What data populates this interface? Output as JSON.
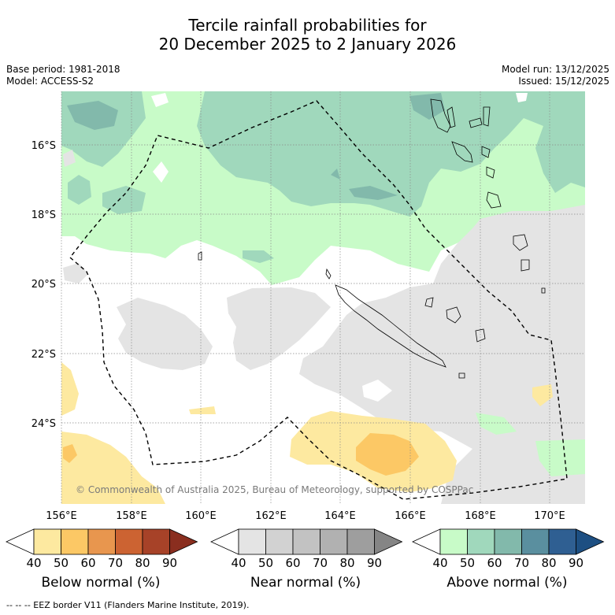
{
  "title": {
    "line1": "Tercile rainfall probabilities for",
    "line2": "20 December 2025 to 2 January 2026"
  },
  "info_left": {
    "base_period": "Base period: 1981-2018",
    "model": "Model: ACCESS-S2"
  },
  "info_right": {
    "model_run": "Model run: 13/12/2025",
    "issued": "Issued: 15/12/2025"
  },
  "map": {
    "lat_labels": [
      "16°S",
      "18°S",
      "20°S",
      "22°S",
      "24°S"
    ],
    "lon_labels": [
      "156°E",
      "158°E",
      "160°E",
      "162°E",
      "164°E",
      "166°E",
      "168°E",
      "170°E"
    ],
    "copyright": "© Commonwealth of Australia 2025, Bureau of Meteorology, supported by COSPPac"
  },
  "colorbars": [
    {
      "label": "Below normal (%)",
      "ticks": [
        "40",
        "50",
        "60",
        "70",
        "80",
        "90"
      ],
      "colors": [
        "#ffffff",
        "#fde9a0",
        "#fcc865",
        "#e8964e",
        "#cc6332",
        "#a74228",
        "#8a2e1f"
      ]
    },
    {
      "label": "Near normal (%)",
      "ticks": [
        "40",
        "50",
        "60",
        "70",
        "80",
        "90"
      ],
      "colors": [
        "#ffffff",
        "#e4e4e4",
        "#d2d2d2",
        "#c2c2c2",
        "#b1b1b1",
        "#9e9e9e",
        "#858585"
      ]
    },
    {
      "label": "Above normal (%)",
      "ticks": [
        "40",
        "50",
        "60",
        "70",
        "80",
        "90"
      ],
      "colors": [
        "#ffffff",
        "#c8fbc8",
        "#a0d8bc",
        "#82b9ab",
        "#5a8f9f",
        "#2f5f92",
        "#1d4f82"
      ]
    }
  ],
  "footer": "-- -- -- EEZ border V11 (Flanders Marine Institute, 2019)."
}
